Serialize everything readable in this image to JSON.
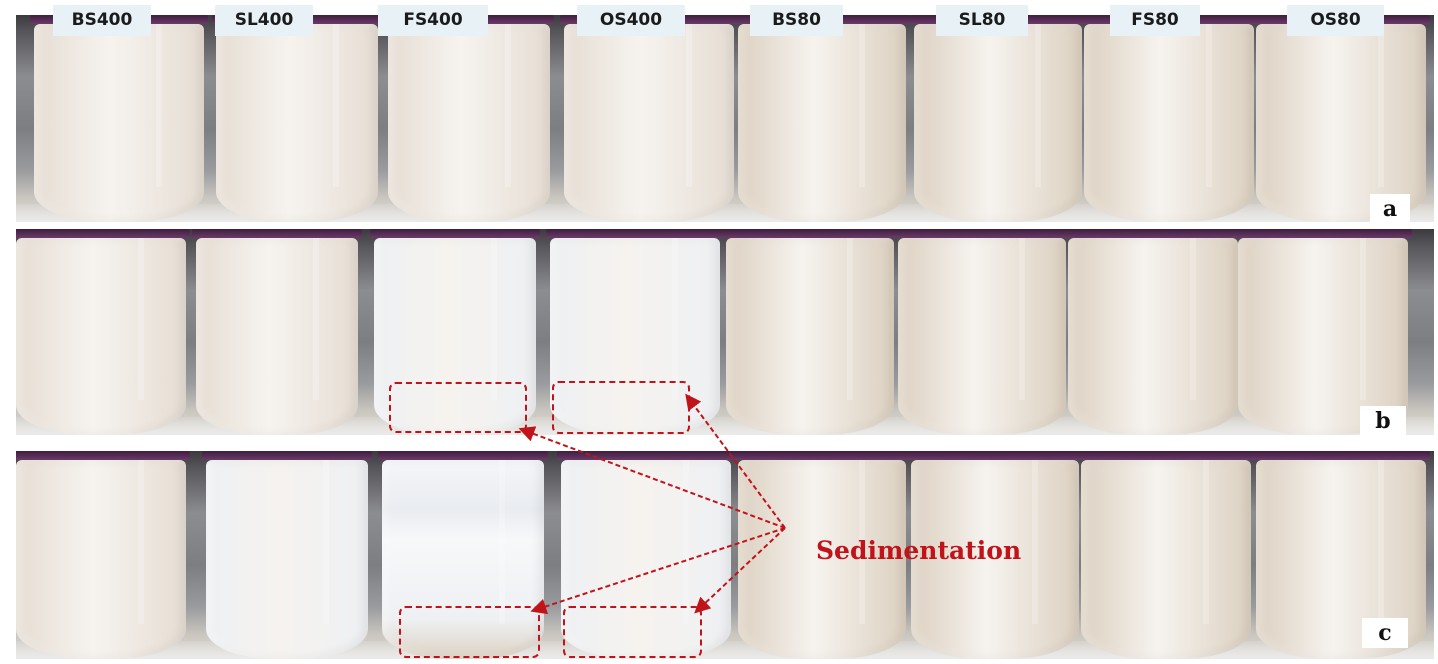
{
  "figure": {
    "sample_labels": [
      "BS400",
      "SL400",
      "FS400",
      "OS400",
      "BS80",
      "SL80",
      "FS80",
      "OS80"
    ],
    "panel_letters": [
      "a",
      "b",
      "c"
    ],
    "annotation": "Sedimentation"
  },
  "colors": {
    "tube_milky": "#e6ddd3",
    "tube_beige": "#dcd0c0",
    "tube_clear": "#eef0f3",
    "cap": "#5a2d58",
    "annotation": "#c0141a",
    "label_bg": "#e8f1f6"
  },
  "icons": [
    "tube-icon",
    "cap-icon",
    "arrow-icon"
  ]
}
